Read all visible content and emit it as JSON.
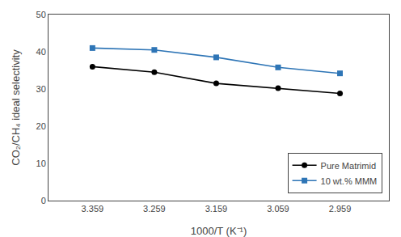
{
  "chart_data": {
    "type": "line",
    "xlabel": "1000/T (K⁻¹)",
    "ylabel": "CO₂/CH₄ ideal selectivity",
    "x": [
      3.359,
      3.259,
      3.159,
      3.059,
      2.959
    ],
    "series": [
      {
        "name": "Pure Matrimid",
        "color": "#000000",
        "marker": "circle",
        "values": [
          36.0,
          34.5,
          31.5,
          30.2,
          28.8
        ]
      },
      {
        "name": "10 wt.% MMM",
        "color": "#2E75B6",
        "marker": "square",
        "values": [
          41.0,
          40.5,
          38.5,
          35.8,
          34.2
        ]
      }
    ],
    "xlim": [
      3.43,
      2.88
    ],
    "xticks": [
      3.359,
      3.259,
      3.159,
      3.059,
      2.959
    ],
    "ylim": [
      0,
      50
    ],
    "yticks": [
      0,
      10,
      20,
      30,
      40,
      50
    ],
    "grid": false,
    "legend": "lower right"
  }
}
